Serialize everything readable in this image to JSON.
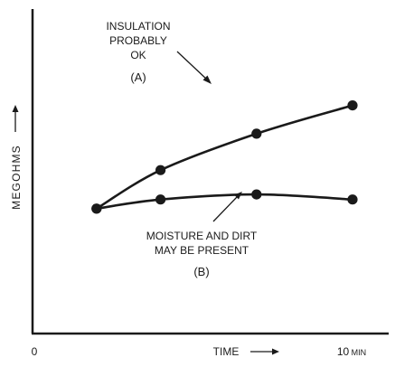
{
  "chart_data": {
    "type": "line",
    "title": "",
    "xlabel": "TIME",
    "ylabel": "MEGOHMS",
    "x_tick_labels": [
      "0",
      "10 MIN"
    ],
    "series": [
      {
        "id": "A",
        "label_lines": [
          "INSULATION",
          "PROBABLY",
          "OK"
        ],
        "tag": "(A)",
        "points": [
          [
            2,
            1.0
          ],
          [
            4,
            4.8
          ],
          [
            7,
            8.4
          ],
          [
            10,
            11.2
          ]
        ]
      },
      {
        "id": "B",
        "label_lines": [
          "MOISTURE AND DIRT",
          "MAY BE PRESENT"
        ],
        "tag": "(B)",
        "points": [
          [
            2,
            1.0
          ],
          [
            4,
            1.9
          ],
          [
            7,
            2.4
          ],
          [
            10,
            1.9
          ]
        ]
      }
    ],
    "grid": false
  }
}
